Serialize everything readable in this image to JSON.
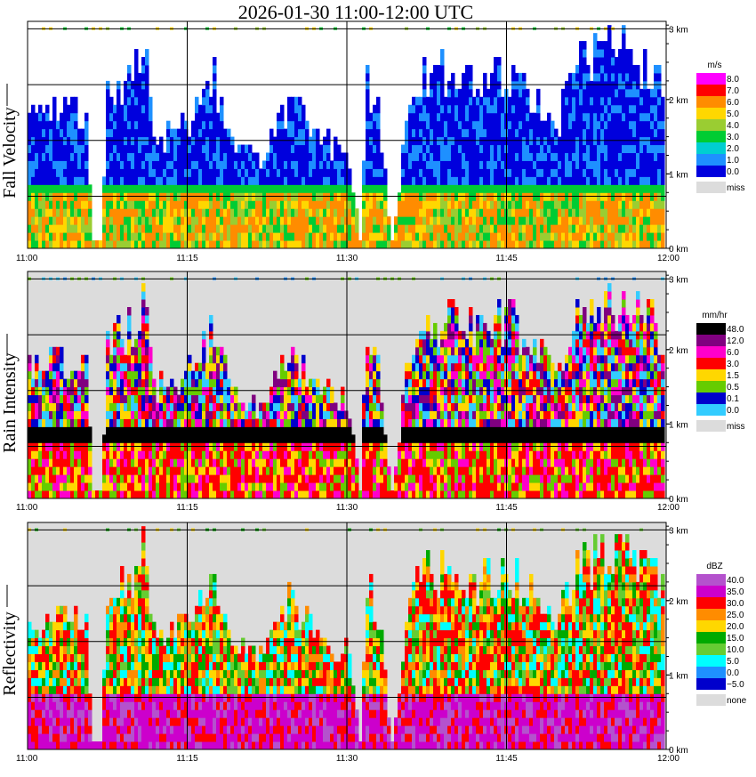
{
  "title": "2026-01-30  11:00-12:00 UTC",
  "time_ticks": [
    "11:00",
    "11:15",
    "11:30",
    "11:45",
    "12:00"
  ],
  "height_ticks": [
    "3 km",
    "2 km",
    "1 km",
    "0 km"
  ],
  "colors": {
    "missing": "#dcdcdc",
    "background": "#ffffff"
  },
  "chart_data": [
    {
      "type": "heatmap",
      "panel": "fall_velocity",
      "ylabel": "Fall Velocity",
      "x_range": [
        "11:00",
        "12:00"
      ],
      "ylim_km": [
        0,
        3
      ],
      "legend": {
        "unit": "m/s",
        "levels": [
          "8.0",
          "7.0",
          "6.0",
          "5.0",
          "4.0",
          "3.0",
          "2.0",
          "1.0",
          "0.0",
          "miss"
        ],
        "colors": [
          "#ff00ff",
          "#ff0000",
          "#ff8c00",
          "#ffd700",
          "#9acd32",
          "#00cc33",
          "#00ced1",
          "#1e90ff",
          "#0000dd",
          "#dcdcdc"
        ]
      }
    },
    {
      "type": "heatmap",
      "panel": "rain_intensity",
      "ylabel": "Rain Intensity",
      "x_range": [
        "11:00",
        "12:00"
      ],
      "ylim_km": [
        0,
        3
      ],
      "legend": {
        "unit": "mm/hr",
        "levels": [
          "48.0",
          "12.0",
          "6.0",
          "3.0",
          "1.5",
          "0.5",
          "0.1",
          "0.0",
          "miss"
        ],
        "colors": [
          "#000000",
          "#800080",
          "#ff00cc",
          "#ff0000",
          "#ffd700",
          "#66cc00",
          "#0000cc",
          "#33ccff",
          "#dcdcdc"
        ]
      }
    },
    {
      "type": "heatmap",
      "panel": "reflectivity",
      "ylabel": "Reflectivity",
      "x_range": [
        "11:00",
        "12:00"
      ],
      "ylim_km": [
        0,
        3
      ],
      "legend": {
        "unit": "dBZ",
        "levels": [
          "40.0",
          "35.0",
          "30.0",
          "25.0",
          "20.0",
          "15.0",
          "10.0",
          "5.0",
          "0.0",
          "−5.0",
          "none"
        ],
        "colors": [
          "#b452cd",
          "#cc00cc",
          "#ff0000",
          "#ff8c00",
          "#ffd700",
          "#00aa00",
          "#66cc33",
          "#00ffff",
          "#1e90ff",
          "#0000cc",
          "#dcdcdc"
        ]
      }
    }
  ]
}
